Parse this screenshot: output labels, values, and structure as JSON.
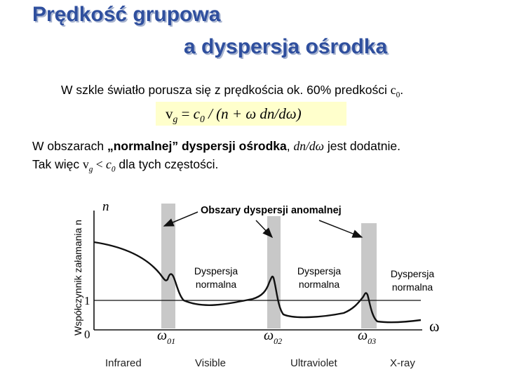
{
  "slide": {
    "title_line1": "Prędkość grupowa",
    "title_line2": "a dyspersja ośrodka",
    "intro_text": "W szkle światło porusza się z prędkościa ok. 60% predkości ",
    "intro_c": "c",
    "intro_sub": "0",
    "intro_end": ".",
    "formula": {
      "v": "v",
      "v_sub": "g",
      "eq": " = ",
      "c": "c",
      "c_sub": "0",
      "rest": " / (n + ω dn/dω)"
    },
    "normal_text_a": "W obszarach ",
    "normal_text_bold": "„normalnej” dyspersji ośrodka",
    "normal_text_b": ", ",
    "normal_text_it": "dn/dω",
    "normal_text_c": " jest dodatnie.",
    "second_line_a": "Tak więc ",
    "second_line_v": "v",
    "second_line_vsub": "g",
    "second_line_lt": " < ",
    "second_line_c": "c",
    "second_line_csub": "0",
    "second_line_b": " dla tych częstości."
  },
  "diagram": {
    "y_axis_label": "Współczynnik załamania n",
    "n_symbol": "n",
    "one_tick": "1",
    "zero_tick": "0",
    "omega_symbol": "ω",
    "resonances": [
      {
        "label": "ω",
        "sub": "01"
      },
      {
        "label": "ω",
        "sub": "02"
      },
      {
        "label": "ω",
        "sub": "03"
      }
    ],
    "anomalous_label": "Obszary dyspersji anomalnej",
    "normal_labels": [
      {
        "line1": "Dyspersja",
        "line2": "normalna"
      },
      {
        "line1": "Dyspersja",
        "line2": "normalna"
      },
      {
        "line1": "Dyspersja",
        "line2": "normalna"
      }
    ],
    "bands": [
      "Infrared",
      "Visible",
      "Ultraviolet",
      "X-ray"
    ],
    "colors": {
      "shade": "#c8c8c8",
      "curve": "#111111"
    }
  }
}
